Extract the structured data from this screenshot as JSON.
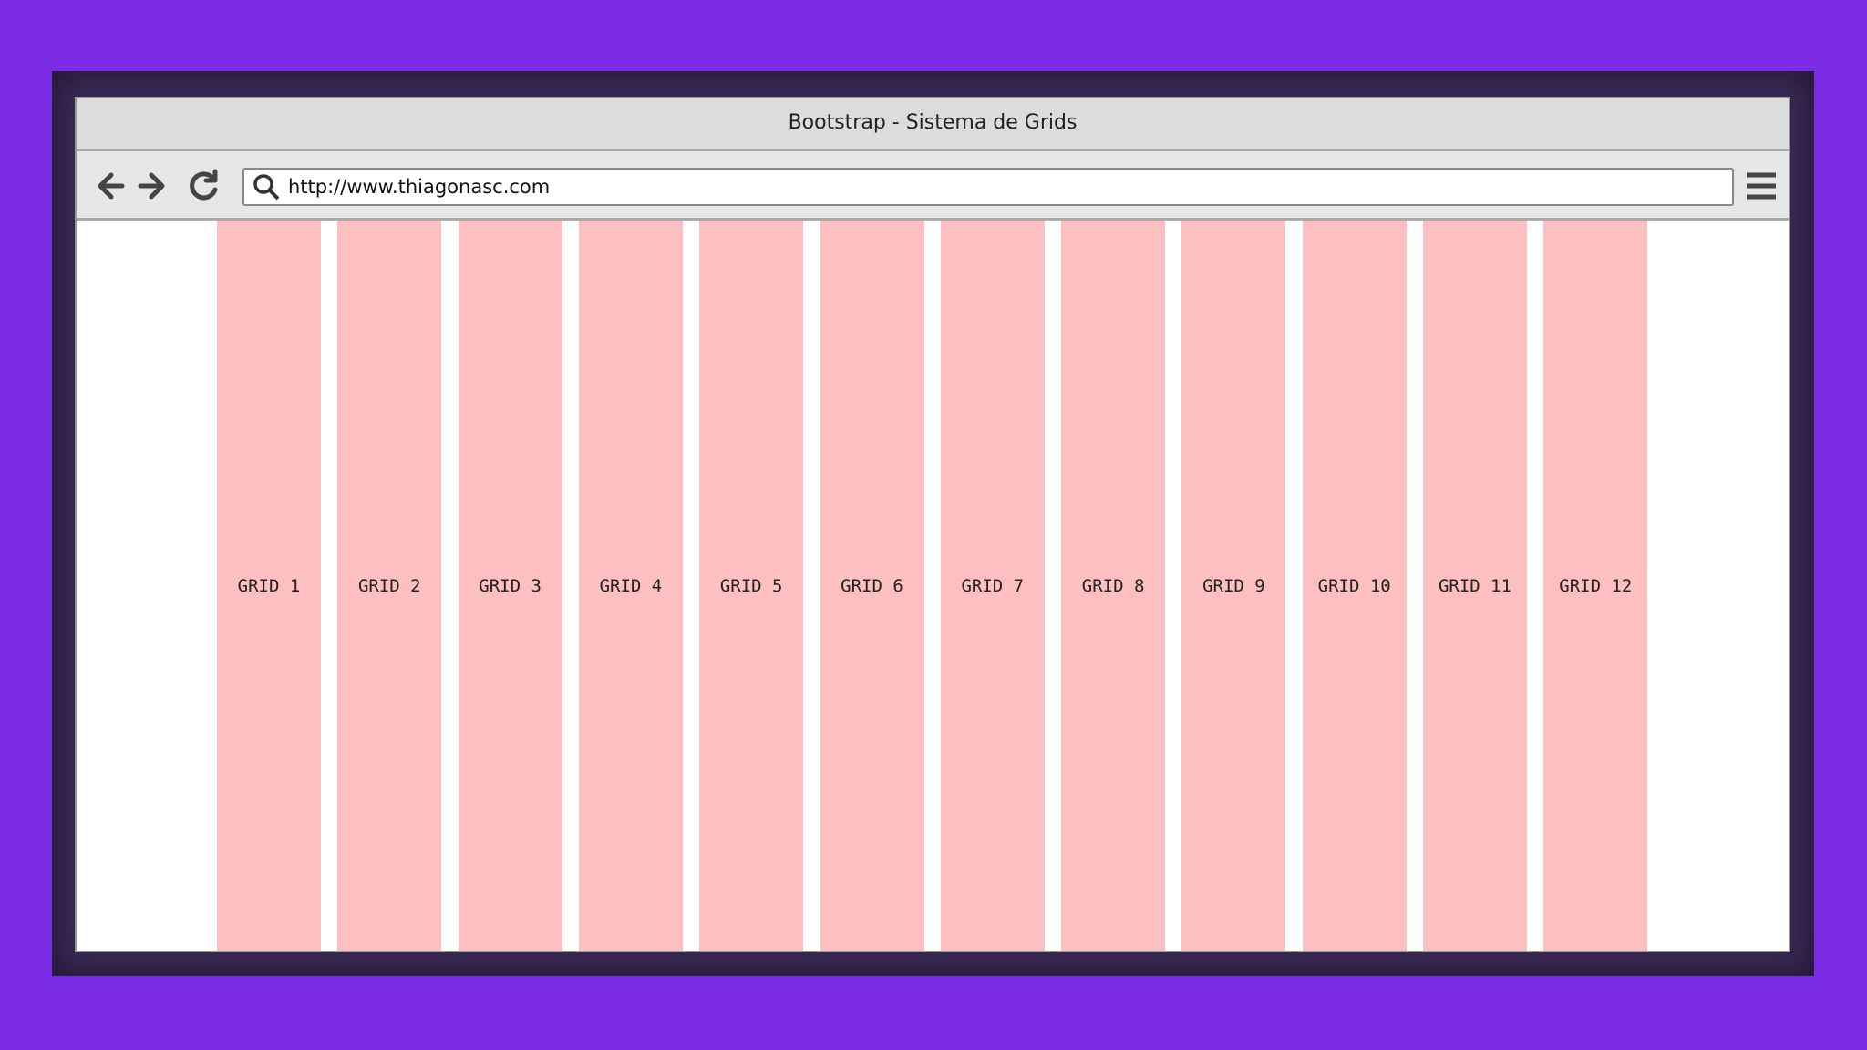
{
  "window": {
    "title": "Bootstrap - Sistema de Grids",
    "url": "http://www.thiagonasc.com"
  },
  "grid": {
    "columns": [
      "GRID 1",
      "GRID 2",
      "GRID 3",
      "GRID 4",
      "GRID 5",
      "GRID 6",
      "GRID 7",
      "GRID 8",
      "GRID 9",
      "GRID 10",
      "GRID 11",
      "GRID 12"
    ]
  }
}
